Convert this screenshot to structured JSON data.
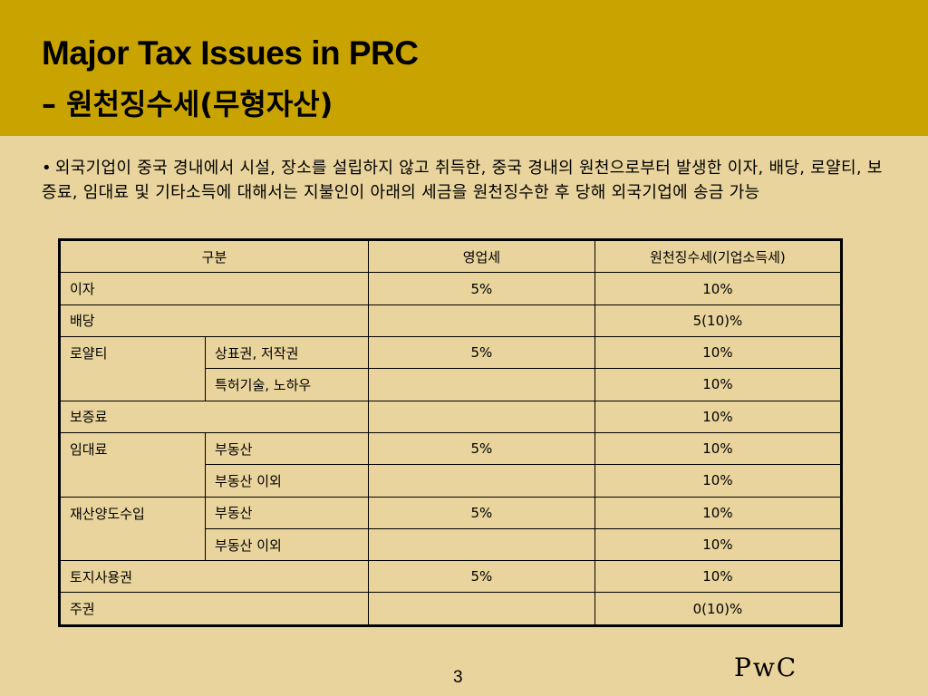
{
  "slide": {
    "title_line1": "Major Tax Issues in PRC",
    "title_line2": "– 원천징수세(무형자산)",
    "bullet_mark": "•",
    "bullet_text": "외국기업이 중국 경내에서 시설, 장소를 설립하지 않고 취득한, 중국 경내의 원천으로부터 발생한 이자, 배당, 로얄티, 보증료, 임대료 및 기타소득에 대해서는 지불인이 아래의 세금을 원천징수한 후 당해 외국기업에 송금 가능",
    "page_number": "3",
    "logo_text": "PwC",
    "colors": {
      "header": "#c9a300",
      "background": "#e8d49c"
    }
  },
  "table": {
    "headers": {
      "category": "구분",
      "business_tax": "영업세",
      "withholding_tax": "원천징수세(기업소득세)"
    },
    "rows": [
      {
        "category": "이자",
        "sub": "",
        "business_tax": "5%",
        "withholding_tax": "10%"
      },
      {
        "category": "배당",
        "sub": "",
        "business_tax": "",
        "withholding_tax": "5(10)%"
      },
      {
        "category": "로얄티",
        "sub": "상표권, 저작권",
        "business_tax": "5%",
        "withholding_tax": "10%"
      },
      {
        "category": "",
        "sub": "특허기술, 노하우",
        "business_tax": "",
        "withholding_tax": "10%"
      },
      {
        "category": "보증료",
        "sub": "",
        "business_tax": "",
        "withholding_tax": "10%"
      },
      {
        "category": "임대료",
        "sub": "부동산",
        "business_tax": "5%",
        "withholding_tax": "10%"
      },
      {
        "category": "",
        "sub": "부동산 이외",
        "business_tax": "",
        "withholding_tax": "10%"
      },
      {
        "category": "재산양도수입",
        "sub": "부동산",
        "business_tax": "5%",
        "withholding_tax": "10%"
      },
      {
        "category": "",
        "sub": "부동산 이외",
        "business_tax": "",
        "withholding_tax": "10%"
      },
      {
        "category": "토지사용권",
        "sub": "",
        "business_tax": "5%",
        "withholding_tax": "10%"
      },
      {
        "category": "주권",
        "sub": "",
        "business_tax": "",
        "withholding_tax": "0(10)%"
      }
    ]
  }
}
